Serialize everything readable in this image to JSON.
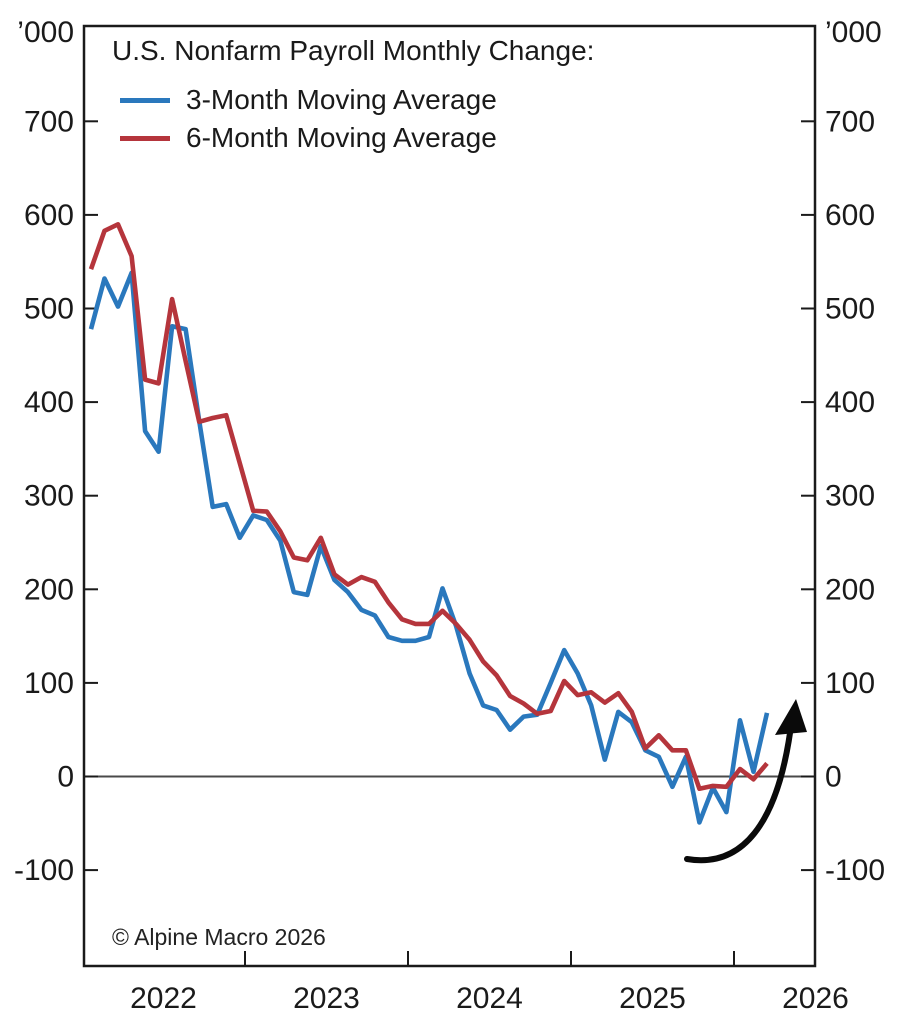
{
  "title": "U.S. Nonfarm Payroll Monthly Change:",
  "copyright": "© Alpine Macro 2026",
  "legend": [
    {
      "label": "3-Month Moving Average",
      "color": "#2a78bd"
    },
    {
      "label": "6-Month Moving Average",
      "color": "#b5353c"
    }
  ],
  "chart_data": {
    "type": "line",
    "title": "U.S. Nonfarm Payroll Monthly Change:",
    "unit_label": "’000",
    "frequency": "monthly",
    "start": "2022-01",
    "end": "2026-03",
    "ylim": [
      -200,
      800
    ],
    "ytick_values": [
      700,
      600,
      500,
      400,
      300,
      200,
      100,
      0,
      -100
    ],
    "xtick_year_labels": [
      "2022",
      "2023",
      "2024",
      "2025",
      "2026"
    ],
    "grid": "zero-line-only",
    "legend_position": "top-left-inside",
    "series": [
      {
        "name": "3-Month Moving Average",
        "color": "#2a78bd",
        "values": [
          478,
          532,
          502,
          538,
          369,
          347,
          481,
          478,
          380,
          288,
          291,
          255,
          279,
          274,
          252,
          197,
          194,
          246,
          210,
          197,
          178,
          172,
          149,
          145,
          145,
          149,
          201,
          161,
          110,
          76,
          71,
          50,
          64,
          66,
          100,
          135,
          110,
          76,
          18,
          69,
          58,
          28,
          21,
          -11,
          21,
          -49,
          -12,
          -38,
          60,
          5,
          68
        ]
      },
      {
        "name": "6-Month Moving Average",
        "color": "#b5353c",
        "values": [
          542,
          583,
          590,
          556,
          424,
          420,
          510,
          444,
          379,
          383,
          386,
          335,
          284,
          283,
          262,
          234,
          231,
          255,
          216,
          205,
          213,
          208,
          186,
          168,
          163,
          163,
          177,
          163,
          146,
          123,
          108,
          86,
          78,
          67,
          70,
          102,
          87,
          90,
          79,
          89,
          69,
          30,
          44,
          28,
          28,
          -13,
          -10,
          -11,
          8,
          -3,
          14
        ]
      }
    ],
    "annotations": [
      {
        "type": "curved-arrow-up",
        "location": "lower-right",
        "color": "#0a0a0a"
      }
    ]
  }
}
